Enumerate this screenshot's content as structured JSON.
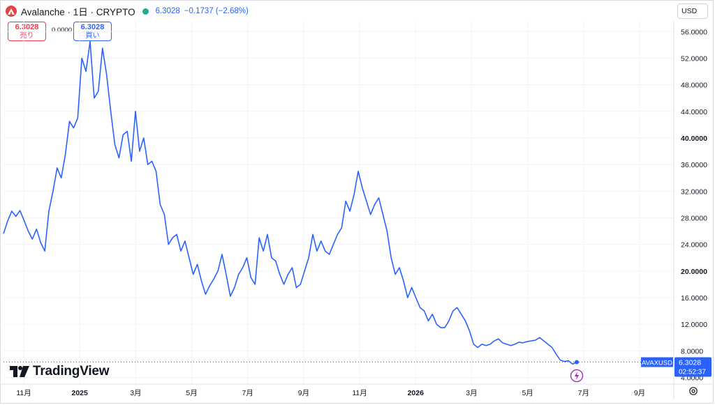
{
  "header": {
    "title": "Avalanche · 1日 · CRYPTO",
    "price": "6.3028",
    "change": "−0.1737 (−2.68%)"
  },
  "trade": {
    "sell_price": "6.3028",
    "sell_label": "売り",
    "spread": "0.0000",
    "buy_price": "6.3028",
    "buy_label": "買い"
  },
  "currency_button": "USD",
  "watermark": "TradingView",
  "colors": {
    "line": "#2962ff",
    "sell": "#f23645",
    "buy": "#2962ff",
    "status_dot": "#22ab94",
    "logo": "#e84142"
  },
  "chart_data": {
    "type": "line",
    "symbol": "AVAXUSD",
    "last_price_label": "6.3028",
    "countdown": "02:52:37",
    "y_ticks": [
      "56.0000",
      "52.0000",
      "48.0000",
      "44.0000",
      "40.0000",
      "36.0000",
      "32.0000",
      "28.0000",
      "24.0000",
      "20.0000",
      "16.0000",
      "12.0000",
      "8.0000",
      "4.0000"
    ],
    "y_ticks_bold": [
      "40.0000",
      "20.0000"
    ],
    "ylim": [
      3.0,
      57.6
    ],
    "x_ticks": [
      {
        "label": "11月",
        "bold": false
      },
      {
        "label": "2025",
        "bold": true
      },
      {
        "label": "3月",
        "bold": false
      },
      {
        "label": "5月",
        "bold": false
      },
      {
        "label": "7月",
        "bold": false
      },
      {
        "label": "9月",
        "bold": false
      },
      {
        "label": "11月",
        "bold": false
      },
      {
        "label": "2026",
        "bold": true
      },
      {
        "label": "3月",
        "bold": false
      },
      {
        "label": "5月",
        "bold": false
      },
      {
        "label": "7月",
        "bold": false
      },
      {
        "label": "9月",
        "bold": false
      }
    ],
    "series": [
      {
        "values": [
          25.6,
          27.5,
          29.0,
          28.2,
          29.1,
          27.6,
          26.0,
          24.8,
          26.3,
          24.3,
          23.0,
          29.0,
          32.0,
          35.5,
          34.0,
          37.5,
          42.5,
          41.5,
          43.0,
          52.0,
          50.0,
          54.5,
          46.0,
          47.0,
          53.5,
          49.5,
          44.0,
          39.0,
          37.0,
          40.5,
          41.0,
          36.5,
          44.0,
          38.0,
          40.0,
          36.0,
          36.5,
          35.0,
          30.0,
          28.5,
          24.0,
          25.0,
          25.5,
          23.0,
          24.5,
          22.0,
          19.5,
          21.0,
          18.5,
          16.5,
          17.8,
          18.8,
          20.0,
          22.5,
          19.5,
          16.2,
          17.5,
          19.5,
          20.5,
          22.0,
          19.0,
          18.0,
          25.0,
          23.0,
          25.5,
          22.0,
          21.5,
          19.5,
          18.0,
          19.5,
          20.5,
          17.5,
          18.0,
          20.0,
          22.0,
          25.5,
          23.0,
          24.5,
          23.0,
          22.5,
          24.0,
          25.5,
          26.5,
          30.5,
          29.0,
          31.5,
          35.0,
          32.5,
          30.5,
          28.5,
          30.0,
          31.0,
          28.5,
          26.0,
          22.0,
          19.5,
          20.5,
          18.5,
          16.0,
          17.5,
          16.0,
          14.5,
          14.0,
          12.5,
          13.5,
          12.0,
          11.5,
          11.5,
          12.5,
          14.0,
          14.5,
          13.5,
          12.5,
          11.0,
          9.0,
          8.5,
          9.0,
          8.8,
          9.0,
          9.5,
          9.8,
          9.2,
          9.0,
          8.8,
          9.0,
          9.3,
          9.2,
          9.4,
          9.5,
          9.6,
          10.0,
          9.5,
          9.0,
          8.5,
          7.5,
          6.6,
          6.4,
          6.5,
          6.0,
          6.3
        ]
      }
    ]
  }
}
